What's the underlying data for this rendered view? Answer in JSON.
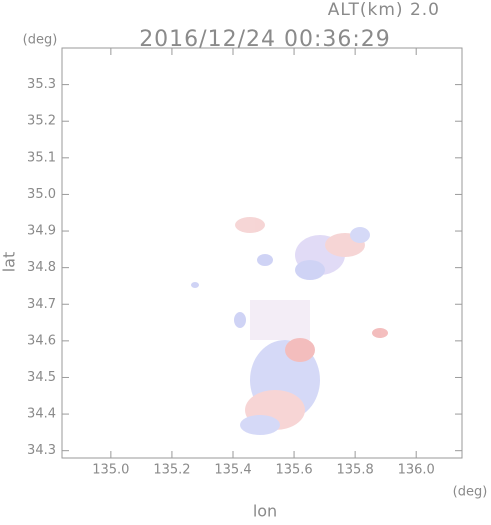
{
  "chart_data": {
    "type": "field",
    "title": "2016/12/24 00:36:29",
    "subtitle": "ALT(km) 2.0",
    "x_label": "lon",
    "y_label": "lat",
    "x_unit": "(deg)",
    "y_unit": "(deg)",
    "xlim": [
      134.84,
      136.15
    ],
    "ylim": [
      34.28,
      35.4
    ],
    "xticks": [
      {
        "value": 135,
        "label": "135.0"
      },
      135.2,
      135.4,
      135.6,
      135.8,
      {
        "value": 136,
        "label": "136.0"
      }
    ],
    "yticks": [
      34.3,
      34.4,
      34.5,
      34.6,
      34.7,
      34.8,
      34.9,
      {
        "value": 35,
        "label": "35.0"
      },
      35.1,
      35.2,
      35.3
    ]
  }
}
